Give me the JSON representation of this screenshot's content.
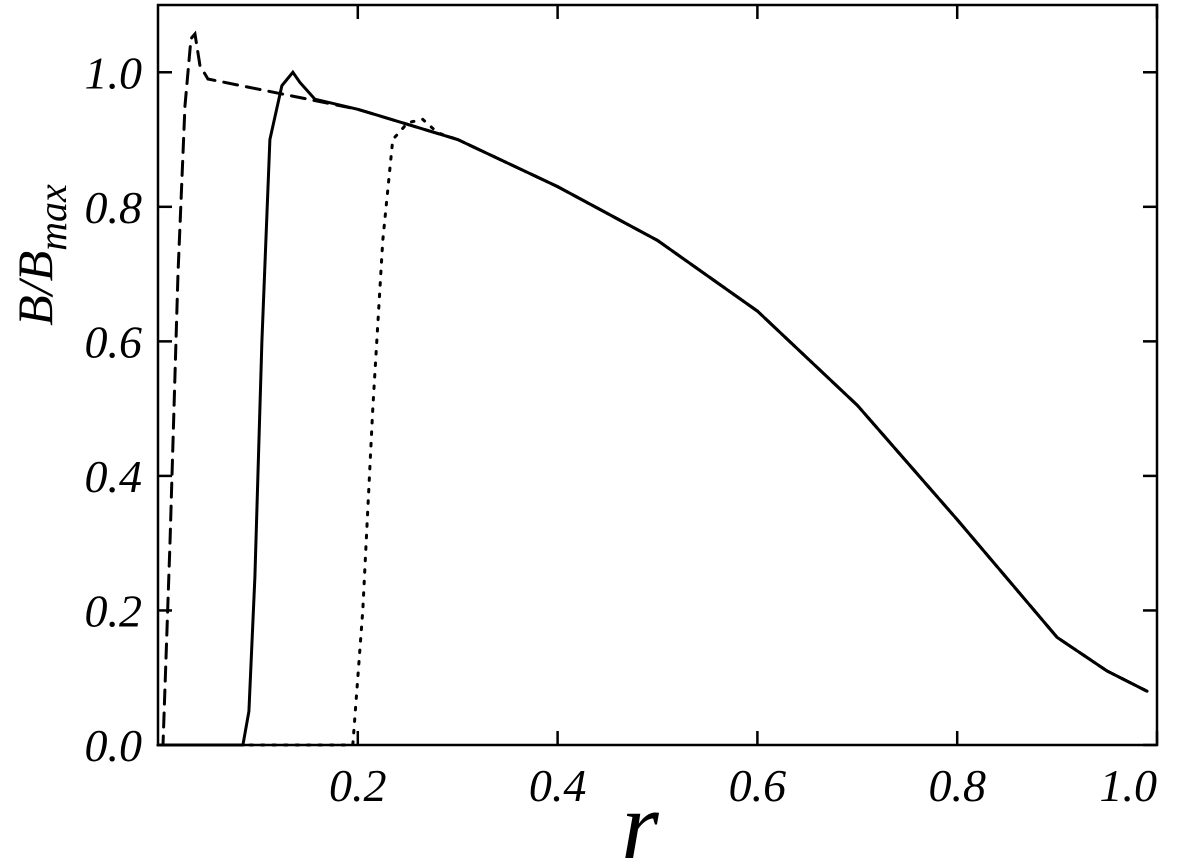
{
  "chart_data": {
    "type": "line",
    "x_label": "r",
    "y_label": {
      "main": "B/B",
      "sub": "max"
    },
    "xlim": [
      0,
      1
    ],
    "ylim": [
      0,
      1.1
    ],
    "xticks": [
      0.2,
      0.4,
      0.6,
      0.8,
      {
        "value": 1,
        "label": "1.0"
      }
    ],
    "yticks": [
      {
        "value": 0,
        "label": "0.0"
      },
      0.2,
      0.4,
      0.6,
      0.8,
      {
        "value": 1,
        "label": "1.0"
      }
    ],
    "series": [
      {
        "style": "solid",
        "color": "#000000",
        "x": [
          0,
          0.085,
          0.091,
          0.097,
          0.104,
          0.112,
          0.124,
          0.135,
          0.142,
          0.157,
          0.2,
          0.3,
          0.4,
          0.5,
          0.6,
          0.7,
          0.8,
          0.9,
          0.95,
          0.99
        ],
        "values": [
          0,
          0,
          0.05,
          0.25,
          0.6,
          0.9,
          0.98,
          1.0,
          0.985,
          0.96,
          0.945,
          0.9,
          0.83,
          0.75,
          0.645,
          0.505,
          0.335,
          0.16,
          0.11,
          0.08
        ]
      },
      {
        "style": "dashed",
        "color": "#000000",
        "x": [
          0,
          0.005,
          0.012,
          0.02,
          0.027,
          0.033,
          0.037,
          0.042,
          0.05,
          0.1,
          0.15,
          0.2,
          0.3,
          0.4,
          0.5,
          0.6,
          0.7,
          0.8,
          0.9,
          0.95,
          0.99
        ],
        "values": [
          0,
          0,
          0.3,
          0.7,
          0.95,
          1.05,
          1.057,
          1.01,
          0.99,
          0.975,
          0.96,
          0.945,
          0.9,
          0.83,
          0.75,
          0.645,
          0.505,
          0.335,
          0.16,
          0.11,
          0.08
        ]
      },
      {
        "style": "dotted",
        "color": "#000000",
        "x": [
          0,
          0.195,
          0.205,
          0.215,
          0.225,
          0.235,
          0.25,
          0.265,
          0.28,
          0.3,
          0.4,
          0.5,
          0.6,
          0.7,
          0.8,
          0.9,
          0.95,
          0.99
        ],
        "values": [
          0,
          0,
          0.2,
          0.5,
          0.75,
          0.9,
          0.925,
          0.93,
          0.91,
          0.9,
          0.83,
          0.75,
          0.645,
          0.505,
          0.335,
          0.16,
          0.11,
          0.08
        ]
      }
    ]
  }
}
